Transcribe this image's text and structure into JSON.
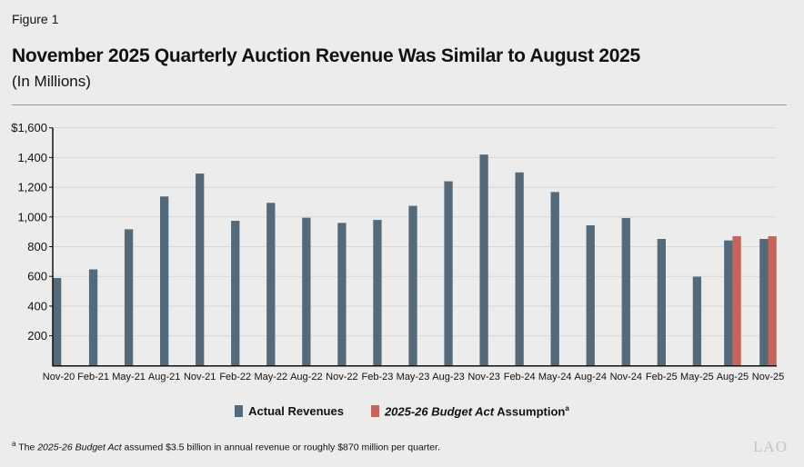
{
  "figure_label": "Figure 1",
  "footnote": {
    "marker": "a",
    "pre": "The ",
    "italic": "2025-26 Budget Act",
    "post": " assumed $3.5 billion in annual revenue or roughly $870 million per quarter."
  },
  "logo": "LAO",
  "colors": {
    "actual": "#546a7b",
    "assumption": "#c4645a",
    "background": "#ebeceb",
    "grid": "#d6d8d8"
  },
  "chart_data": {
    "type": "bar",
    "title": "November 2025 Quarterly Auction Revenue Was Similar to August 2025",
    "subtitle": "(In Millions)",
    "categories": [
      "Nov-20",
      "Feb-21",
      "May-21",
      "Aug-21",
      "Nov-21",
      "Feb-22",
      "May-22",
      "Aug-22",
      "Nov-22",
      "Feb-23",
      "May-23",
      "Aug-23",
      "Nov-23",
      "Feb-24",
      "May-24",
      "Aug-24",
      "Nov-24",
      "Feb-25",
      "May-25",
      "Aug-25",
      "Nov-25"
    ],
    "series": [
      {
        "name": "Actual Revenues",
        "values": [
          589,
          647,
          917,
          1138,
          1292,
          974,
          1095,
          995,
          960,
          980,
          1075,
          1240,
          1420,
          1300,
          1168,
          944,
          993,
          852,
          598,
          842,
          852
        ]
      },
      {
        "name": "2025-26 Budget Act Assumption",
        "values": [
          null,
          null,
          null,
          null,
          null,
          null,
          null,
          null,
          null,
          null,
          null,
          null,
          null,
          null,
          null,
          null,
          null,
          null,
          null,
          870,
          870
        ]
      }
    ],
    "legend_labels": {
      "actual": "Actual Revenues",
      "assumption_italic": "2025-26 Budget Act",
      "assumption_rest": " Assumption",
      "assumption_marker": "a"
    },
    "ylim": [
      0,
      1600
    ],
    "yticks": [
      200,
      400,
      600,
      800,
      1000,
      1200,
      1400,
      1600
    ],
    "ytick_labels": [
      "200",
      "400",
      "600",
      "800",
      "1,000",
      "1,200",
      "1,400",
      "$1,600"
    ],
    "grid": true,
    "legend_position": "bottom"
  }
}
